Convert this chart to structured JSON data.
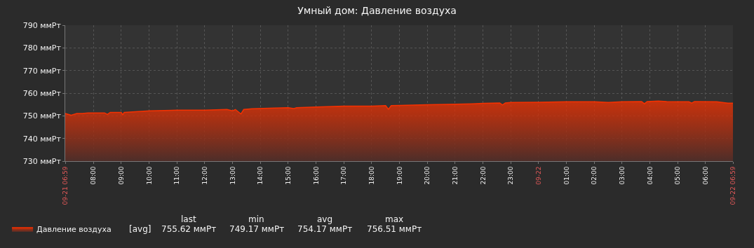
{
  "chart_data": {
    "type": "area",
    "title": "Умный дом: Давление воздуха",
    "legend": "bottom left",
    "grid": true,
    "marker": "none",
    "line_style": "solid",
    "xlim": [
      "--09-21T06:59",
      "--09-22T06:59"
    ],
    "xticks": [
      {
        "value": "--09-21T06:59",
        "label": "09-21 06:59"
      },
      {
        "value": "--09-21T08:00",
        "label": "08:00"
      },
      {
        "value": "--09-21T09:00",
        "label": "09:00"
      },
      {
        "value": "--09-21T10:00",
        "label": "10:00"
      },
      {
        "value": "--09-21T11:00",
        "label": "11:00"
      },
      {
        "value": "--09-21T12:00",
        "label": "12:00"
      },
      {
        "value": "--09-21T13:00",
        "label": "13:00"
      },
      {
        "value": "--09-21T14:00",
        "label": "14:00"
      },
      {
        "value": "--09-21T15:00",
        "label": "15:00"
      },
      {
        "value": "--09-21T16:00",
        "label": "16:00"
      },
      {
        "value": "--09-21T17:00",
        "label": "17:00"
      },
      {
        "value": "--09-21T18:00",
        "label": "18:00"
      },
      {
        "value": "--09-21T19:00",
        "label": "19:00"
      },
      {
        "value": "--09-21T20:00",
        "label": "20:00"
      },
      {
        "value": "--09-21T21:00",
        "label": "21:00"
      },
      {
        "value": "--09-21T22:00",
        "label": "22:00"
      },
      {
        "value": "--09-21T23:00",
        "label": "23:00"
      },
      {
        "value": "--09-22T00:00",
        "label": "09-22"
      },
      {
        "value": "--09-22T01:00",
        "label": "01:00"
      },
      {
        "value": "--09-22T02:00",
        "label": "02:00"
      },
      {
        "value": "--09-22T03:00",
        "label": "03:00"
      },
      {
        "value": "--09-22T04:00",
        "label": "04:00"
      },
      {
        "value": "--09-22T05:00",
        "label": "05:00"
      },
      {
        "value": "--09-22T06:00",
        "label": "06:00"
      },
      {
        "value": "--09-22T06:59",
        "label": "09-22 06:59"
      }
    ],
    "ylim": [
      730,
      790
    ],
    "yticks": [
      {
        "value": 730,
        "label": "730 ммРт"
      },
      {
        "value": 740,
        "label": "740 ммРт"
      },
      {
        "value": 750,
        "label": "750 ммРт"
      },
      {
        "value": 760,
        "label": "760 ммРт"
      },
      {
        "value": 770,
        "label": "770 ммРт"
      },
      {
        "value": 780,
        "label": "780 ммРт"
      },
      {
        "value": 790,
        "label": "790 ммРт"
      }
    ],
    "x": [
      "--09-21T06:59",
      "--09-21T07:12",
      "--09-21T07:24",
      "--09-21T07:36",
      "--09-21T07:48",
      "--09-21T08:24",
      "--09-21T08:30",
      "--09-21T08:36",
      "--09-21T09:00",
      "--09-21T09:03",
      "--09-21T09:06",
      "--09-21T09:30",
      "--09-21T10:00",
      "--09-21T10:48",
      "--09-21T11:00",
      "--09-21T12:00",
      "--09-21T12:48",
      "--09-21T13:00",
      "--09-21T13:06",
      "--09-21T13:18",
      "--09-21T13:24",
      "--09-21T13:42",
      "--09-21T14:30",
      "--09-21T15:00",
      "--09-21T15:12",
      "--09-21T15:18",
      "--09-21T16:00",
      "--09-21T17:00",
      "--09-21T18:00",
      "--09-21T18:30",
      "--09-21T18:36",
      "--09-21T18:42",
      "--09-21T19:00",
      "--09-21T20:00",
      "--09-21T21:00",
      "--09-21T21:36",
      "--09-21T22:00",
      "--09-21T22:36",
      "--09-21T22:42",
      "--09-21T22:48",
      "--09-21T23:00",
      "--09-22T00:00",
      "--09-22T01:00",
      "--09-22T02:00",
      "--09-22T02:30",
      "--09-22T03:00",
      "--09-22T03:42",
      "--09-22T03:48",
      "--09-22T03:54",
      "--09-22T04:18",
      "--09-22T04:36",
      "--09-22T05:00",
      "--09-22T05:24",
      "--09-22T05:30",
      "--09-22T05:36",
      "--09-22T06:24",
      "--09-22T06:48",
      "--09-22T06:59"
    ],
    "series": [
      {
        "name": "Давление воздуха",
        "color": "#f63100",
        "values": [
          751.0,
          750.3,
          751.0,
          751.0,
          751.3,
          751.3,
          750.6,
          751.5,
          751.5,
          750.4,
          751.5,
          751.8,
          752.2,
          752.4,
          752.5,
          752.5,
          752.8,
          752.2,
          752.8,
          750.8,
          752.8,
          753.1,
          753.4,
          753.6,
          753.2,
          753.6,
          753.9,
          754.3,
          754.3,
          754.5,
          752.9,
          754.5,
          754.6,
          754.9,
          755.1,
          755.3,
          755.5,
          755.7,
          754.8,
          755.7,
          755.9,
          756.0,
          756.2,
          756.2,
          755.9,
          756.2,
          756.3,
          755.3,
          756.3,
          756.5,
          756.3,
          756.2,
          756.2,
          755.6,
          756.3,
          756.2,
          755.6,
          755.6
        ]
      }
    ],
    "annotations": [
      "[avg]",
      "last",
      "755.62 ммРт",
      "min",
      "749.17 ммРт",
      "avg",
      "754.17 ммРт",
      "max",
      "756.51 ммРт"
    ]
  }
}
